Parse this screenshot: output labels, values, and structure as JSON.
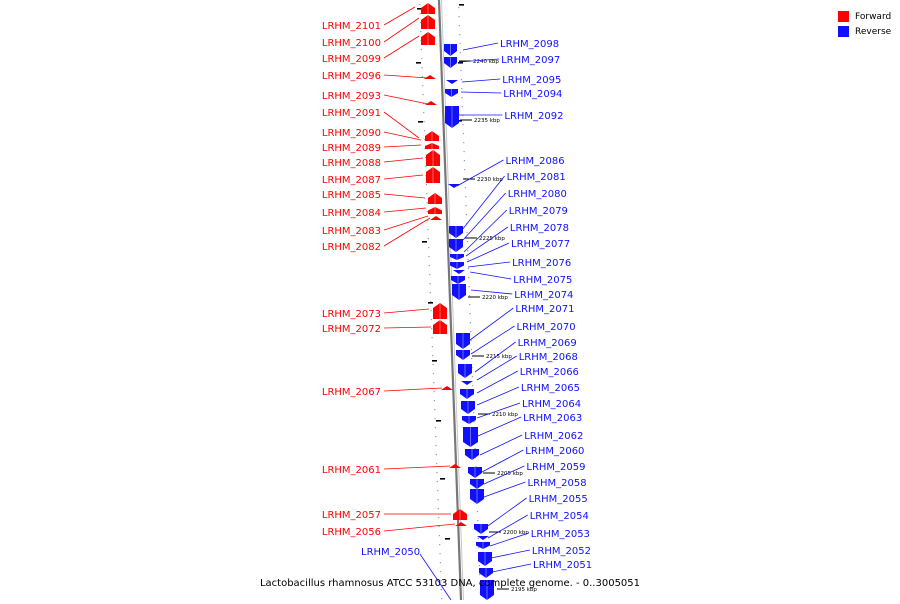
{
  "title": "Lactobacillus rhamnosus ATCC 53103 DNA, complete genome. - 0..3005051",
  "legend": {
    "forward": {
      "label": "Forward",
      "color": "#ff0000"
    },
    "reverse": {
      "label": "Reverse",
      "color": "#1010ff"
    }
  },
  "colors": {
    "forward": "#ff0000",
    "reverse": "#1010ff",
    "backbone": "#888888"
  },
  "tick_labels": [
    "2240 kbp",
    "2235 kbp",
    "2230 kbp",
    "2225 kbp",
    "2220 kbp",
    "2215 kbp",
    "2210 kbp",
    "2205 kbp",
    "2200 kbp",
    "2195 kbp"
  ],
  "forward_genes": [
    "LRHM_2101",
    "LRHM_2100",
    "LRHM_2099",
    "LRHM_2096",
    "LRHM_2093",
    "LRHM_2091",
    "LRHM_2090",
    "LRHM_2089",
    "LRHM_2088",
    "LRHM_2087",
    "LRHM_2085",
    "LRHM_2084",
    "LRHM_2083",
    "LRHM_2082",
    "LRHM_2073",
    "LRHM_2072",
    "LRHM_2067",
    "LRHM_2061",
    "LRHM_2057",
    "LRHM_2056"
  ],
  "reverse_genes": [
    "LRHM_2098",
    "LRHM_2097",
    "LRHM_2095",
    "LRHM_2094",
    "LRHM_2092",
    "LRHM_2086",
    "LRHM_2081",
    "LRHM_2080",
    "LRHM_2079",
    "LRHM_2078",
    "LRHM_2077",
    "LRHM_2076",
    "LRHM_2075",
    "LRHM_2074",
    "LRHM_2071",
    "LRHM_2070",
    "LRHM_2069",
    "LRHM_2068",
    "LRHM_2066",
    "LRHM_2065",
    "LRHM_2064",
    "LRHM_2063",
    "LRHM_2062",
    "LRHM_2060",
    "LRHM_2059",
    "LRHM_2058",
    "LRHM_2055",
    "LRHM_2054",
    "LRHM_2053",
    "LRHM_2052",
    "LRHM_2051",
    "LRHM_2050"
  ]
}
